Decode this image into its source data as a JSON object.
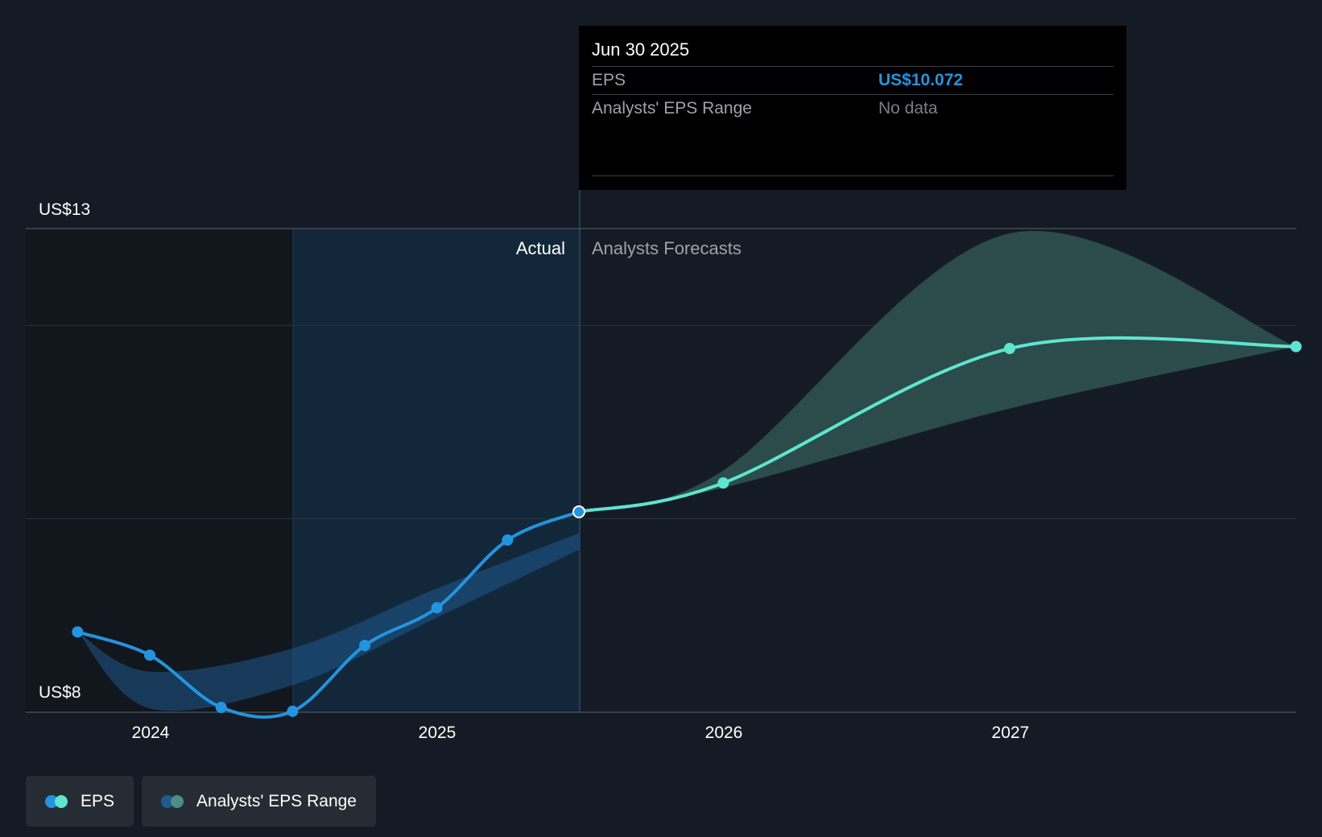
{
  "chart_data": {
    "type": "line",
    "y_axis": {
      "labels": [
        "US$13",
        "US$8"
      ],
      "ylim": [
        8,
        13
      ]
    },
    "x_axis": {
      "ticks": [
        "2024",
        "2025",
        "2026",
        "2027"
      ]
    },
    "regions": {
      "actual_label": "Actual",
      "forecast_label": "Analysts Forecasts"
    },
    "series": [
      {
        "name": "EPS",
        "color_actual": "#2394df",
        "color_forecast": "#5ee5d0",
        "points_actual": [
          [
            "2023-09-30",
            8.83
          ],
          [
            "2023-12-31",
            8.59
          ],
          [
            "2024-03-31",
            8.05
          ],
          [
            "2024-06-30",
            8.01
          ],
          [
            "2024-09-30",
            8.69
          ],
          [
            "2024-12-31",
            9.08
          ],
          [
            "2025-03-31",
            9.78
          ],
          [
            "2025-06-30",
            10.072
          ]
        ],
        "points_forecast": [
          [
            "2025-06-30",
            10.072
          ],
          [
            "2025-12-31",
            10.37
          ],
          [
            "2026-12-31",
            11.76
          ],
          [
            "2027-12-31",
            11.78
          ]
        ]
      },
      {
        "name": "Analysts' EPS Range",
        "actual_band_color": "#1e5a8c",
        "forecast_band_color": "#2d524f",
        "actual_band": {
          "x": [
            "2023-09-30",
            "2023-12-31",
            "2024-06-30",
            "2024-12-31",
            "2025-06-30"
          ],
          "high": [
            8.83,
            8.42,
            8.66,
            9.28,
            9.85
          ],
          "low": [
            8.83,
            8.04,
            8.28,
            8.98,
            9.68
          ]
        },
        "forecast_band": {
          "x": [
            "2025-06-30",
            "2025-12-31",
            "2026-12-31",
            "2027-12-31"
          ],
          "high": [
            10.072,
            10.5,
            12.95,
            11.78
          ],
          "low": [
            10.072,
            10.32,
            11.14,
            11.78
          ]
        }
      }
    ],
    "tooltip": {
      "date": "Jun 30 2025",
      "rows": [
        {
          "label": "EPS",
          "value": "US$10.072"
        },
        {
          "label": "Analysts' EPS Range",
          "value": "No data"
        }
      ]
    },
    "legend": [
      "EPS",
      "Analysts' EPS Range"
    ]
  }
}
